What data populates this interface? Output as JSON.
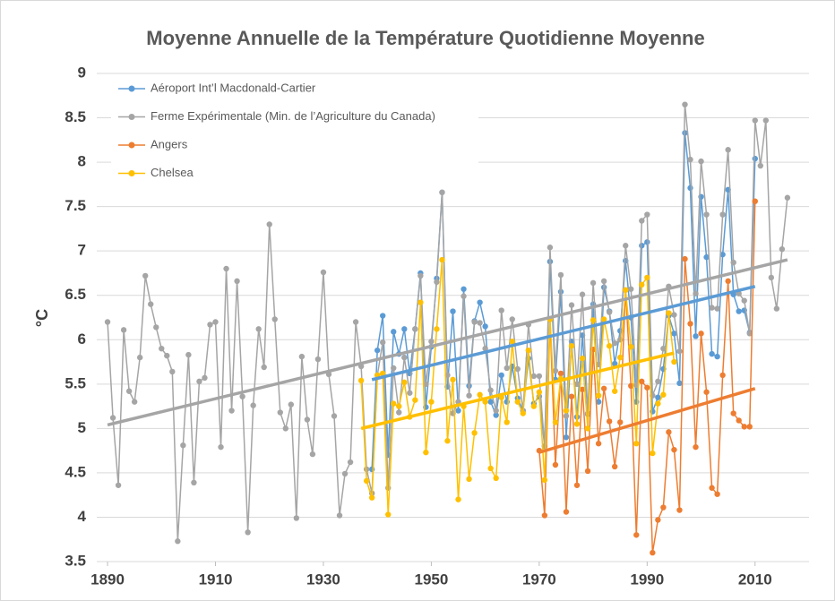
{
  "chart_data": {
    "type": "line",
    "title": "Moyenne Annuelle de la Température Quotidienne Moyenne",
    "y_label": "°C",
    "xlim": [
      1888,
      2020
    ],
    "xticks": [
      1890,
      1910,
      1930,
      1950,
      1970,
      1990,
      2010
    ],
    "ylim": [
      3.5,
      9
    ],
    "yticks": [
      3.5,
      4,
      4.5,
      5,
      5.5,
      6,
      6.5,
      7,
      7.5,
      8,
      8.5,
      9
    ],
    "grid": true,
    "legend": "upper left",
    "series": [
      {
        "name": "Aéroport Int’l Macdonald-Cartier",
        "color": "#5b9bd5",
        "x": [
          1939,
          1940,
          1941,
          1942,
          1943,
          1944,
          1945,
          1946,
          1947,
          1948,
          1949,
          1950,
          1951,
          1952,
          1953,
          1954,
          1955,
          1956,
          1957,
          1958,
          1959,
          1960,
          1961,
          1962,
          1963,
          1964,
          1965,
          1966,
          1967,
          1968,
          1969,
          1970,
          1971,
          1972,
          1973,
          1974,
          1975,
          1976,
          1977,
          1978,
          1979,
          1980,
          1981,
          1982,
          1983,
          1984,
          1985,
          1986,
          1987,
          1988,
          1989,
          1990,
          1991,
          1992,
          1993,
          1994,
          1995,
          1996,
          1997,
          1998,
          1999,
          2000,
          2001,
          2002,
          2003,
          2004,
          2005,
          2006,
          2007,
          2008,
          2009,
          2010
        ],
        "values": [
          4.54,
          5.88,
          6.27,
          4.7,
          6.09,
          5.84,
          6.12,
          5.62,
          6.12,
          6.75,
          5.24,
          5.92,
          6.69,
          7.66,
          5.47,
          6.32,
          5.2,
          6.57,
          5.48,
          6.21,
          6.42,
          6.15,
          5.3,
          5.15,
          5.6,
          5.3,
          5.7,
          5.34,
          5.2,
          5.79,
          5.28,
          5.36,
          4.8,
          6.88,
          5.55,
          6.54,
          4.9,
          5.98,
          5.13,
          6.05,
          5.16,
          6.4,
          5.3,
          6.59,
          6.32,
          5.73,
          6.1,
          6.89,
          6.25,
          5.3,
          7.06,
          7.1,
          5.19,
          5.35,
          5.67,
          6.27,
          6.07,
          5.51,
          8.33,
          7.71,
          6.04,
          7.61,
          6.93,
          5.84,
          5.81,
          6.96,
          7.69,
          6.51,
          6.32,
          6.33,
          6.08,
          8.04
        ],
        "trend": {
          "x": [
            1939,
            2010
          ],
          "y": [
            5.55,
            6.6
          ]
        }
      },
      {
        "name": "Ferme Expérimentale  (Min. de l’Agriculture du Canada)",
        "color": "#a5a5a5",
        "x": [
          1890,
          1891,
          1892,
          1893,
          1894,
          1895,
          1896,
          1897,
          1898,
          1899,
          1900,
          1901,
          1902,
          1903,
          1904,
          1905,
          1906,
          1907,
          1908,
          1909,
          1910,
          1911,
          1912,
          1913,
          1914,
          1915,
          1916,
          1917,
          1918,
          1919,
          1920,
          1921,
          1922,
          1923,
          1924,
          1925,
          1926,
          1927,
          1928,
          1929,
          1930,
          1931,
          1932,
          1933,
          1934,
          1935,
          1936,
          1937,
          1938,
          1939,
          1940,
          1941,
          1942,
          1943,
          1944,
          1945,
          1946,
          1947,
          1948,
          1949,
          1950,
          1951,
          1952,
          1953,
          1954,
          1955,
          1956,
          1957,
          1958,
          1959,
          1960,
          1961,
          1962,
          1963,
          1964,
          1965,
          1966,
          1967,
          1968,
          1969,
          1970,
          1971,
          1972,
          1973,
          1974,
          1975,
          1976,
          1977,
          1978,
          1979,
          1980,
          1981,
          1982,
          1983,
          1984,
          1985,
          1986,
          1987,
          1988,
          1989,
          1990,
          1991,
          1992,
          1993,
          1994,
          1995,
          1996,
          1997,
          1998,
          1999,
          2000,
          2001,
          2002,
          2003,
          2004,
          2005,
          2006,
          2007,
          2008,
          2009,
          2010,
          2011,
          2012,
          2013,
          2014,
          2015,
          2016
        ],
        "values": [
          6.2,
          5.12,
          4.36,
          6.11,
          5.42,
          5.3,
          5.8,
          6.72,
          6.4,
          6.14,
          5.9,
          5.82,
          5.64,
          3.73,
          4.81,
          5.83,
          4.39,
          5.53,
          5.57,
          6.17,
          6.2,
          4.79,
          6.8,
          5.2,
          6.66,
          5.36,
          3.83,
          5.26,
          6.12,
          5.69,
          7.3,
          6.23,
          5.18,
          5.0,
          5.27,
          3.99,
          5.81,
          5.1,
          4.71,
          5.78,
          6.76,
          5.61,
          5.14,
          4.02,
          4.49,
          4.62,
          6.2,
          5.7,
          4.54,
          4.27,
          5.6,
          5.97,
          4.33,
          5.68,
          5.18,
          5.8,
          5.4,
          6.12,
          6.72,
          5.5,
          5.98,
          6.65,
          7.66,
          5.6,
          5.17,
          5.3,
          6.49,
          5.37,
          6.2,
          6.19,
          5.9,
          5.43,
          5.2,
          6.33,
          5.68,
          6.23,
          5.67,
          5.2,
          6.17,
          5.59,
          5.59,
          4.8,
          7.04,
          5.65,
          6.73,
          5.14,
          6.39,
          5.5,
          6.51,
          5.17,
          6.64,
          5.72,
          6.66,
          6.31,
          5.96,
          6.0,
          7.06,
          6.57,
          5.49,
          7.34,
          7.41,
          5.37,
          5.53,
          5.9,
          6.6,
          6.28,
          5.87,
          8.65,
          8.03,
          6.52,
          8.01,
          7.41,
          6.36,
          6.35,
          7.41,
          8.14,
          6.87,
          6.52,
          6.44,
          6.07,
          8.47,
          7.96,
          8.47,
          6.7,
          6.35,
          7.02,
          7.6
        ],
        "trend": {
          "x": [
            1890,
            2016
          ],
          "y": [
            5.04,
            6.9
          ]
        }
      },
      {
        "name": "Angers",
        "color": "#ed7d31",
        "x": [
          1970,
          1971,
          1972,
          1973,
          1974,
          1975,
          1976,
          1977,
          1978,
          1979,
          1980,
          1981,
          1982,
          1983,
          1984,
          1985,
          1986,
          1987,
          1988,
          1989,
          1990,
          1991,
          1992,
          1993,
          1994,
          1995,
          1996,
          1997,
          1998,
          1999,
          2000,
          2001,
          2002,
          2003,
          2004,
          2005,
          2006,
          2007,
          2008,
          2009,
          2010
        ],
        "values": [
          4.75,
          4.02,
          6.23,
          4.59,
          5.62,
          4.06,
          5.36,
          4.36,
          5.44,
          4.52,
          5.89,
          4.83,
          5.45,
          5.08,
          4.57,
          5.07,
          6.56,
          5.48,
          3.8,
          5.53,
          5.46,
          3.6,
          3.97,
          4.11,
          4.96,
          4.76,
          4.08,
          6.91,
          6.18,
          4.79,
          6.07,
          5.41,
          4.33,
          4.26,
          5.6,
          6.66,
          5.17,
          5.09,
          5.02,
          5.02,
          7.56
        ],
        "trend": {
          "x": [
            1970,
            2010
          ],
          "y": [
            4.73,
            5.45
          ]
        }
      },
      {
        "name": "Chelsea",
        "color": "#ffc000",
        "x": [
          1937,
          1938,
          1939,
          1940,
          1941,
          1942,
          1943,
          1944,
          1945,
          1946,
          1947,
          1948,
          1949,
          1950,
          1951,
          1952,
          1953,
          1954,
          1955,
          1956,
          1957,
          1958,
          1959,
          1960,
          1961,
          1962,
          1963,
          1964,
          1965,
          1966,
          1967,
          1968,
          1969,
          1970,
          1971,
          1972,
          1973,
          1974,
          1975,
          1976,
          1977,
          1978,
          1979,
          1980,
          1981,
          1982,
          1983,
          1984,
          1985,
          1986,
          1987,
          1988,
          1989,
          1990,
          1991,
          1992,
          1993,
          1994,
          1995
        ],
        "values": [
          5.54,
          4.41,
          4.22,
          5.6,
          5.62,
          4.03,
          5.28,
          5.25,
          5.52,
          5.13,
          5.32,
          6.42,
          4.73,
          5.3,
          6.12,
          6.9,
          4.86,
          5.55,
          4.2,
          5.25,
          4.43,
          4.95,
          5.38,
          5.3,
          4.55,
          4.44,
          5.35,
          5.07,
          5.98,
          5.3,
          5.17,
          5.88,
          5.25,
          5.41,
          4.42,
          6.23,
          5.07,
          5.56,
          5.2,
          5.93,
          5.05,
          5.79,
          5.0,
          6.22,
          5.37,
          6.23,
          5.93,
          5.42,
          5.8,
          6.56,
          5.92,
          4.83,
          6.62,
          6.7,
          4.72,
          5.28,
          5.38,
          6.3,
          5.75
        ],
        "trend": {
          "x": [
            1937,
            1995
          ],
          "y": [
            5.0,
            5.85
          ]
        }
      }
    ]
  }
}
